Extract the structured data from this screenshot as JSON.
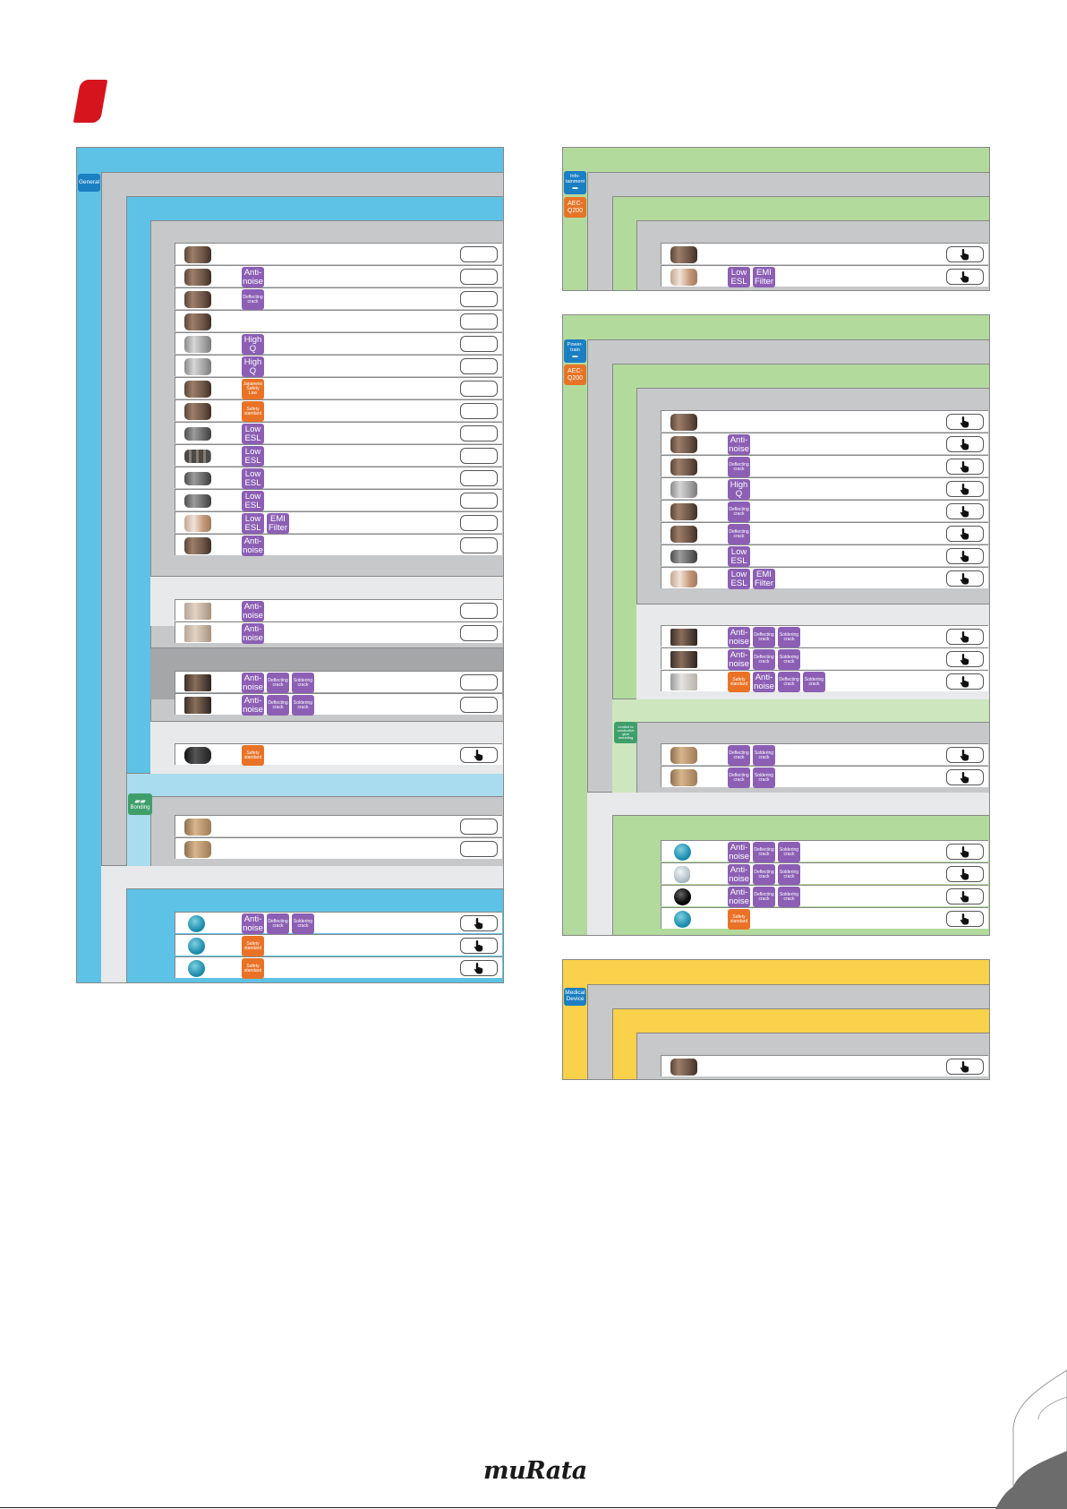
{
  "brand": {
    "logo_text": "muRata"
  },
  "colors": {
    "red_marker": "#d6141e",
    "general_blue": "#5dc2e6",
    "light_blue": "#a9dcef",
    "auto_green": "#b3da9d",
    "light_green": "#cde6bd",
    "medical_yellow": "#f9d14a",
    "gray": "#c6c8ca",
    "light_gray": "#e8e9ea",
    "dark_gray": "#a4a6a8",
    "badge_purple": "#8c5fb5",
    "badge_orange": "#ea7226",
    "tag_blue": "#1a7fc3",
    "tag_orange": "#e77426",
    "tag_green": "#3f9f6b"
  },
  "icons": {
    "button": "pointing-hand-icon"
  },
  "tables": {
    "general": {
      "tag": "General",
      "bonding_tag": "Bonding",
      "rows": [
        {
          "thumb": "mlcc-brown",
          "badges": [],
          "button_icon": false
        },
        {
          "thumb": "mlcc-brown",
          "badges": [
            {
              "text": "Anti-\nnoise",
              "color": "purple",
              "size": "lg"
            }
          ],
          "button_icon": false
        },
        {
          "thumb": "mlcc-brown",
          "badges": [
            {
              "text": "Deflecting\ncrack",
              "color": "purple",
              "size": "sm"
            }
          ],
          "button_icon": false
        },
        {
          "thumb": "mlcc-brown",
          "badges": [],
          "button_icon": false
        },
        {
          "thumb": "mlcc-gray",
          "badges": [
            {
              "text": "High\nQ",
              "color": "purple",
              "size": "lg"
            }
          ],
          "button_icon": false
        },
        {
          "thumb": "mlcc-gray",
          "badges": [
            {
              "text": "High\nQ",
              "color": "purple",
              "size": "lg"
            }
          ],
          "button_icon": false
        },
        {
          "thumb": "mlcc-brown",
          "badges": [
            {
              "text": "Japanese\nSafety\nLaw",
              "color": "orange",
              "size": "sm"
            }
          ],
          "button_icon": false
        },
        {
          "thumb": "mlcc-brown",
          "badges": [
            {
              "text": "Safety\nstandard",
              "color": "orange",
              "size": "sm"
            }
          ],
          "button_icon": false
        },
        {
          "thumb": "mlcc-long",
          "badges": [
            {
              "text": "Low\nESL",
              "color": "purple",
              "size": "lg"
            }
          ],
          "button_icon": false
        },
        {
          "thumb": "mlcc-array",
          "badges": [
            {
              "text": "Low\nESL",
              "color": "purple",
              "size": "lg"
            }
          ],
          "button_icon": false
        },
        {
          "thumb": "mlcc-long",
          "badges": [
            {
              "text": "Low\nESL",
              "color": "purple",
              "size": "lg"
            }
          ],
          "button_icon": false
        },
        {
          "thumb": "mlcc-long",
          "badges": [
            {
              "text": "Low\nESL",
              "color": "purple",
              "size": "lg"
            }
          ],
          "button_icon": false
        },
        {
          "thumb": "mlcc-filter",
          "badges": [
            {
              "text": "Low\nESL",
              "color": "purple",
              "size": "lg"
            },
            {
              "text": "EMI\nFilter",
              "color": "purple",
              "size": "lg"
            }
          ],
          "button_icon": false
        },
        {
          "thumb": "mlcc-brown",
          "badges": [
            {
              "text": "Anti-\nnoise",
              "color": "purple",
              "size": "lg"
            }
          ],
          "button_icon": false
        },
        {
          "thumb": "mlcc-lead",
          "badges": [
            {
              "text": "Anti-\nnoise",
              "color": "purple",
              "size": "lg"
            }
          ],
          "button_icon": false
        },
        {
          "thumb": "mlcc-lead",
          "badges": [
            {
              "text": "Anti-\nnoise",
              "color": "purple",
              "size": "lg"
            }
          ],
          "button_icon": false
        },
        {
          "thumb": "mlcc-frame",
          "badges": [
            {
              "text": "Anti-\nnoise",
              "color": "purple",
              "size": "lg"
            },
            {
              "text": "Deflecting\ncrack",
              "color": "purple",
              "size": "sm"
            },
            {
              "text": "Soldering\ncrack",
              "color": "purple",
              "size": "sm"
            }
          ],
          "button_icon": false
        },
        {
          "thumb": "mlcc-frame",
          "badges": [
            {
              "text": "Anti-\nnoise",
              "color": "purple",
              "size": "lg"
            },
            {
              "text": "Deflecting\ncrack",
              "color": "purple",
              "size": "sm"
            },
            {
              "text": "Soldering\ncrack",
              "color": "purple",
              "size": "sm"
            }
          ],
          "button_icon": false
        },
        {
          "thumb": "mlcc-black",
          "badges": [
            {
              "text": "Safety\nstandard",
              "color": "orange",
              "size": "sm"
            }
          ],
          "button_icon": true
        },
        {
          "thumb": "mlcc-tan",
          "badges": [],
          "button_icon": false
        },
        {
          "thumb": "mlcc-tan",
          "badges": [],
          "button_icon": false
        },
        {
          "thumb": "disc-blue",
          "badges": [
            {
              "text": "Anti-\nnoise",
              "color": "purple",
              "size": "lg"
            },
            {
              "text": "Deflecting\ncrack",
              "color": "purple",
              "size": "sm"
            },
            {
              "text": "Soldering\ncrack",
              "color": "purple",
              "size": "sm"
            }
          ],
          "button_icon": true
        },
        {
          "thumb": "disc-blue",
          "badges": [
            {
              "text": "Safety\nstandard",
              "color": "orange",
              "size": "sm"
            }
          ],
          "button_icon": true
        },
        {
          "thumb": "disc-blue",
          "badges": [
            {
              "text": "Safety\nstandard",
              "color": "orange",
              "size": "sm"
            }
          ],
          "button_icon": true
        }
      ]
    },
    "infotainment": {
      "tag": "Info-\ntainment",
      "aec_tag": "AEC-\nQ200",
      "rows": [
        {
          "thumb": "mlcc-brown",
          "badges": [],
          "button_icon": true
        },
        {
          "thumb": "mlcc-filter",
          "badges": [
            {
              "text": "Low\nESL",
              "color": "purple",
              "size": "lg"
            },
            {
              "text": "EMI\nFilter",
              "color": "purple",
              "size": "lg"
            }
          ],
          "button_icon": true
        }
      ]
    },
    "powertrain": {
      "tag": "Power-\ntrain",
      "aec_tag": "AEC-\nQ200",
      "limited_tag": "Limited to\nconductive\nglue\nmounting",
      "rows": [
        {
          "thumb": "mlcc-brown",
          "badges": [],
          "button_icon": true
        },
        {
          "thumb": "mlcc-brown",
          "badges": [
            {
              "text": "Anti-\nnoise",
              "color": "purple",
              "size": "lg"
            }
          ],
          "button_icon": true
        },
        {
          "thumb": "mlcc-brown",
          "badges": [
            {
              "text": "Deflecting\ncrack",
              "color": "purple",
              "size": "sm"
            }
          ],
          "button_icon": true
        },
        {
          "thumb": "mlcc-gray",
          "badges": [
            {
              "text": "High\nQ",
              "color": "purple",
              "size": "lg"
            }
          ],
          "button_icon": true
        },
        {
          "thumb": "mlcc-brown",
          "badges": [
            {
              "text": "Deflecting\ncrack",
              "color": "purple",
              "size": "sm"
            }
          ],
          "button_icon": true
        },
        {
          "thumb": "mlcc-brown",
          "badges": [
            {
              "text": "Deflecting\ncrack",
              "color": "purple",
              "size": "sm"
            }
          ],
          "button_icon": true
        },
        {
          "thumb": "mlcc-long",
          "badges": [
            {
              "text": "Low\nESL",
              "color": "purple",
              "size": "lg"
            }
          ],
          "button_icon": true
        },
        {
          "thumb": "mlcc-filter",
          "badges": [
            {
              "text": "Low\nESL",
              "color": "purple",
              "size": "lg"
            },
            {
              "text": "EMI\nFilter",
              "color": "purple",
              "size": "lg"
            }
          ],
          "button_icon": true
        },
        {
          "thumb": "mlcc-frame",
          "badges": [
            {
              "text": "Anti-\nnoise",
              "color": "purple",
              "size": "lg"
            },
            {
              "text": "Deflecting\ncrack",
              "color": "purple",
              "size": "sm"
            },
            {
              "text": "Soldering\ncrack",
              "color": "purple",
              "size": "sm"
            }
          ],
          "button_icon": true
        },
        {
          "thumb": "mlcc-frame",
          "badges": [
            {
              "text": "Anti-\nnoise",
              "color": "purple",
              "size": "lg"
            },
            {
              "text": "Deflecting\ncrack",
              "color": "purple",
              "size": "sm"
            },
            {
              "text": "Soldering\ncrack",
              "color": "purple",
              "size": "sm"
            }
          ],
          "button_icon": true
        },
        {
          "thumb": "mlcc-silver",
          "badges": [
            {
              "text": "Safety\nstandard",
              "color": "orange",
              "size": "sm"
            },
            {
              "text": "Anti-\nnoise",
              "color": "purple",
              "size": "lg"
            },
            {
              "text": "Deflecting\ncrack",
              "color": "purple",
              "size": "sm"
            },
            {
              "text": "Soldering\ncrack",
              "color": "purple",
              "size": "sm"
            }
          ],
          "button_icon": true
        },
        {
          "thumb": "mlcc-tan",
          "badges": [
            {
              "text": "Deflecting\ncrack",
              "color": "purple",
              "size": "sm"
            },
            {
              "text": "Soldering\ncrack",
              "color": "purple",
              "size": "sm"
            }
          ],
          "button_icon": true
        },
        {
          "thumb": "mlcc-tan",
          "badges": [
            {
              "text": "Deflecting\ncrack",
              "color": "purple",
              "size": "sm"
            },
            {
              "text": "Soldering\ncrack",
              "color": "purple",
              "size": "sm"
            }
          ],
          "button_icon": true
        },
        {
          "thumb": "disc-blue",
          "badges": [
            {
              "text": "Anti-\nnoise",
              "color": "purple",
              "size": "lg"
            },
            {
              "text": "Deflecting\ncrack",
              "color": "purple",
              "size": "sm"
            },
            {
              "text": "Soldering\ncrack",
              "color": "purple",
              "size": "sm"
            }
          ],
          "button_icon": true
        },
        {
          "thumb": "disc-lead",
          "badges": [
            {
              "text": "Anti-\nnoise",
              "color": "purple",
              "size": "lg"
            },
            {
              "text": "Deflecting\ncrack",
              "color": "purple",
              "size": "sm"
            },
            {
              "text": "Soldering\ncrack",
              "color": "purple",
              "size": "sm"
            }
          ],
          "button_icon": true
        },
        {
          "thumb": "disc-black",
          "badges": [
            {
              "text": "Anti-\nnoise",
              "color": "purple",
              "size": "lg"
            },
            {
              "text": "Deflecting\ncrack",
              "color": "purple",
              "size": "sm"
            },
            {
              "text": "Soldering\ncrack",
              "color": "purple",
              "size": "sm"
            }
          ],
          "button_icon": true
        },
        {
          "thumb": "disc-blue",
          "badges": [
            {
              "text": "Safety\nstandard",
              "color": "orange",
              "size": "sm"
            }
          ],
          "button_icon": true
        }
      ]
    },
    "medical": {
      "tag": "Medical\nDevice",
      "rows": [
        {
          "thumb": "mlcc-brown",
          "badges": [],
          "button_icon": true
        }
      ]
    }
  }
}
